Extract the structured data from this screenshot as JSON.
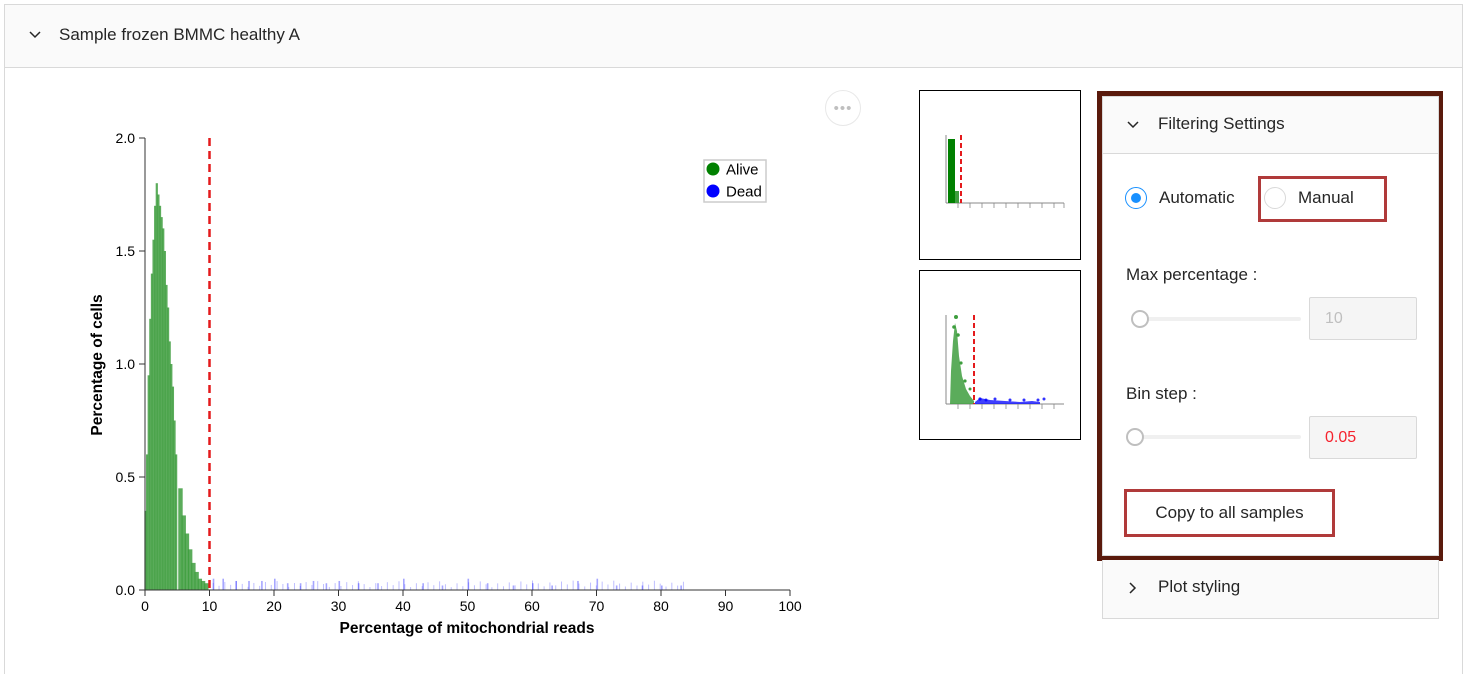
{
  "panel": {
    "title": "Sample frozen BMMC healthy A"
  },
  "more_menu": {
    "label": "•••"
  },
  "filtering": {
    "title": "Filtering Settings",
    "method_options": [
      "Automatic",
      "Manual"
    ],
    "selected_method": "Automatic",
    "max_percentage_label": "Max percentage :",
    "max_percentage_value": "10",
    "max_percentage_slider_fraction": 0.03,
    "bin_step_label": "Bin step :",
    "bin_step_value": "0.05",
    "bin_step_slider_fraction": 0.0,
    "copy_button": "Copy to all samples"
  },
  "plot_styling": {
    "title": "Plot styling"
  },
  "colors": {
    "alive": "#3e9e3e",
    "dead": "#0000ff",
    "threshold": "#e41a1c",
    "highlight": "#b03a3a",
    "frame": "#5a1a0c",
    "radio_checked": "#1890ff"
  },
  "chart_data": {
    "type": "bar",
    "xlabel": "Percentage of mitochondrial reads",
    "ylabel": "Percentage of cells",
    "xlim": [
      0,
      100
    ],
    "ylim": [
      0,
      2.0
    ],
    "x_ticks": [
      0,
      10,
      20,
      30,
      40,
      50,
      60,
      70,
      80,
      90,
      100
    ],
    "y_ticks": [
      "0.0",
      "0.5",
      "1.0",
      "1.5",
      "2.0"
    ],
    "threshold": 10,
    "legend": {
      "placement": "top-right",
      "entries": [
        {
          "name": "Alive",
          "color": "#008000"
        },
        {
          "name": "Dead",
          "color": "#0000ff"
        }
      ]
    },
    "series": [
      {
        "name": "Alive",
        "x": [
          0.25,
          0.5,
          0.75,
          1.0,
          1.25,
          1.5,
          1.75,
          2.0,
          2.25,
          2.5,
          2.75,
          3.0,
          3.25,
          3.5,
          3.75,
          4.0,
          4.25,
          4.5,
          4.75,
          5.0,
          5.5,
          6.0,
          6.5,
          7.0,
          7.5,
          8.0,
          8.5,
          9.0,
          9.5
        ],
        "values": [
          0.35,
          0.6,
          0.95,
          1.2,
          1.4,
          1.55,
          1.7,
          1.8,
          1.75,
          1.7,
          1.65,
          1.6,
          1.5,
          1.35,
          1.25,
          1.1,
          1.0,
          0.9,
          0.75,
          0.6,
          0.45,
          0.33,
          0.25,
          0.18,
          0.12,
          0.08,
          0.05,
          0.04,
          0.03
        ]
      },
      {
        "name": "Dead",
        "x": [
          10.5,
          12,
          14,
          16,
          18,
          20,
          22,
          24,
          26,
          28,
          30,
          33,
          36,
          40,
          43,
          46,
          50,
          53,
          57,
          60,
          63,
          67,
          70,
          73,
          77,
          80,
          83
        ],
        "values": [
          0.05,
          0.05,
          0.04,
          0.04,
          0.04,
          0.05,
          0.03,
          0.03,
          0.04,
          0.03,
          0.04,
          0.03,
          0.03,
          0.05,
          0.03,
          0.02,
          0.05,
          0.03,
          0.02,
          0.03,
          0.02,
          0.04,
          0.05,
          0.02,
          0.02,
          0.02,
          0.02
        ]
      }
    ]
  }
}
